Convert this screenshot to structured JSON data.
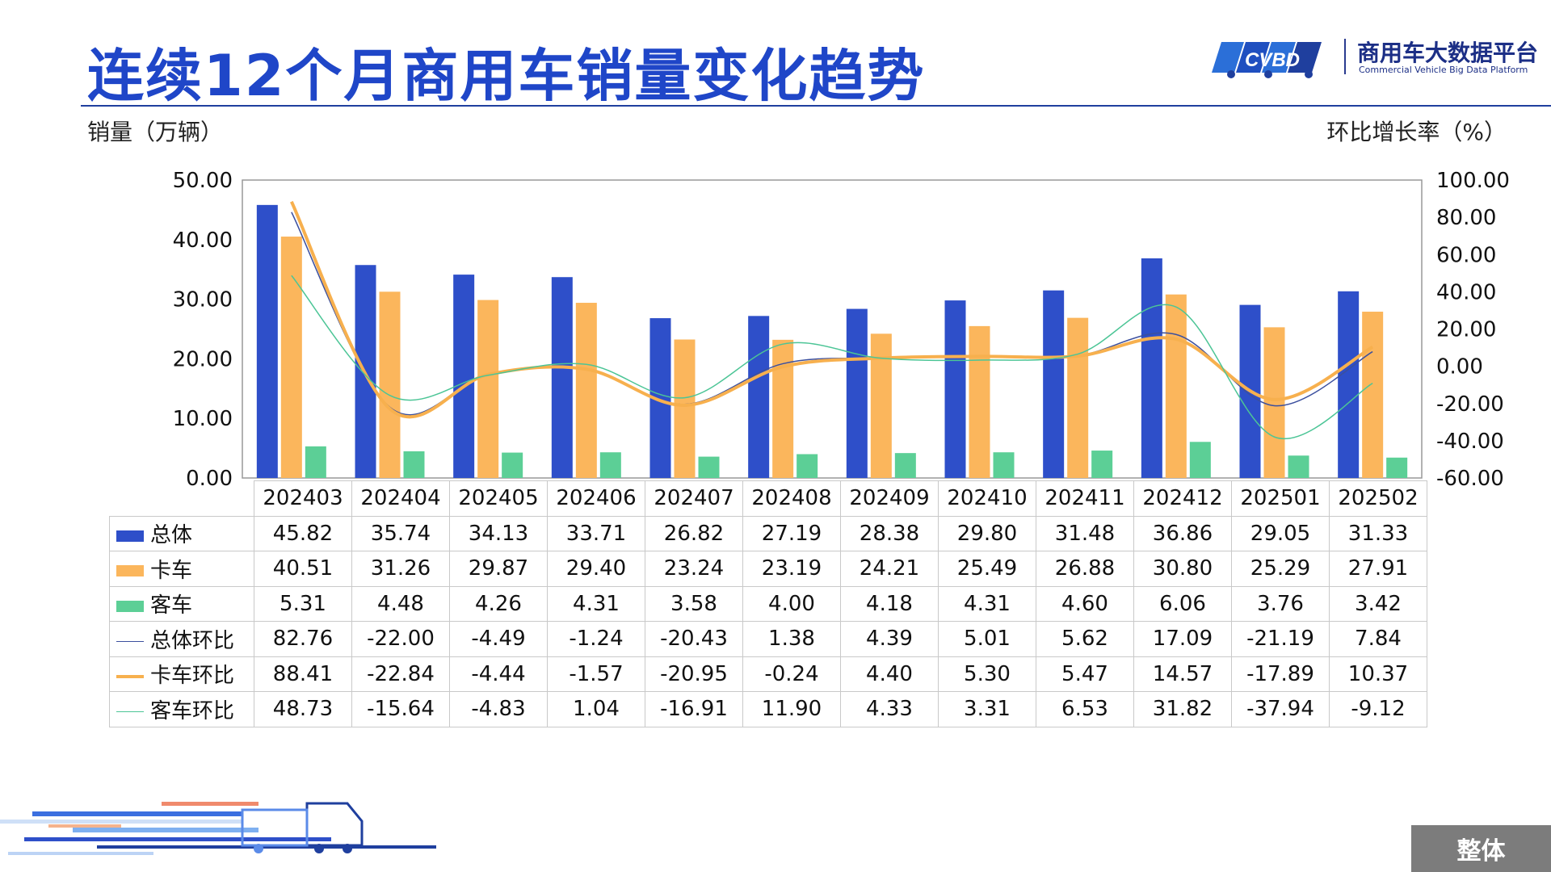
{
  "header": {
    "title": "连续12个月商用车销量变化趋势",
    "logo_text": "商用车大数据平台",
    "logo_sub": "Commercial Vehicle Big Data Platform",
    "logo_mark": "CVBD"
  },
  "axes": {
    "left_title": "销量（万辆）",
    "right_title": "环比增长率（%）"
  },
  "footer": {
    "button_label": "整体"
  },
  "chart_data": {
    "type": "bar",
    "categories": [
      "202403",
      "202404",
      "202405",
      "202406",
      "202407",
      "202408",
      "202409",
      "202410",
      "202411",
      "202412",
      "202501",
      "202502"
    ],
    "y_left": {
      "ticks": [
        "0.00",
        "10.00",
        "20.00",
        "30.00",
        "40.00",
        "50.00"
      ],
      "ylim": [
        0,
        50
      ]
    },
    "y_right": {
      "ticks": [
        "-60.00",
        "-40.00",
        "-20.00",
        "0.00",
        "20.00",
        "40.00",
        "60.00",
        "80.00",
        "100.00"
      ],
      "ylim": [
        -60,
        100
      ]
    },
    "grid": false,
    "series": [
      {
        "name": "总体",
        "kind": "bar",
        "axis": "left",
        "color": "#2e4fc9",
        "values": [
          45.82,
          35.74,
          34.13,
          33.71,
          26.82,
          27.19,
          28.38,
          29.8,
          31.48,
          36.86,
          29.05,
          31.33
        ],
        "labels": [
          "45.82",
          "35.74",
          "34.13",
          "33.71",
          "26.82",
          "27.19",
          "28.38",
          "29.80",
          "31.48",
          "36.86",
          "29.05",
          "31.33"
        ]
      },
      {
        "name": "卡车",
        "kind": "bar",
        "axis": "left",
        "color": "#fbb65c",
        "values": [
          40.51,
          31.26,
          29.87,
          29.4,
          23.24,
          23.19,
          24.21,
          25.49,
          26.88,
          30.8,
          25.29,
          27.91
        ],
        "labels": [
          "40.51",
          "31.26",
          "29.87",
          "29.40",
          "23.24",
          "23.19",
          "24.21",
          "25.49",
          "26.88",
          "30.80",
          "25.29",
          "27.91"
        ]
      },
      {
        "name": "客车",
        "kind": "bar",
        "axis": "left",
        "color": "#5ccf96",
        "values": [
          5.31,
          4.48,
          4.26,
          4.31,
          3.58,
          4.0,
          4.18,
          4.31,
          4.6,
          6.06,
          3.76,
          3.42
        ],
        "labels": [
          "5.31",
          "4.48",
          "4.26",
          "4.31",
          "3.58",
          "4.00",
          "4.18",
          "4.31",
          "4.60",
          "6.06",
          "3.76",
          "3.42"
        ]
      },
      {
        "name": "总体环比",
        "kind": "line",
        "axis": "right",
        "color": "#3b4f9e",
        "values": [
          82.76,
          -22.0,
          -4.49,
          -1.24,
          -20.43,
          1.38,
          4.39,
          5.01,
          5.62,
          17.09,
          -21.19,
          7.84
        ],
        "labels": [
          "82.76",
          "-22.00",
          "-4.49",
          "-1.24",
          "-20.43",
          "1.38",
          "4.39",
          "5.01",
          "5.62",
          "17.09",
          "-21.19",
          "7.84"
        ]
      },
      {
        "name": "卡车环比",
        "kind": "line",
        "axis": "right",
        "color": "#f7b04e",
        "values": [
          88.41,
          -22.84,
          -4.44,
          -1.57,
          -20.95,
          -0.24,
          4.4,
          5.3,
          5.47,
          14.57,
          -17.89,
          10.37
        ],
        "labels": [
          "88.41",
          "-22.84",
          "-4.44",
          "-1.57",
          "-20.95",
          "-0.24",
          "4.40",
          "5.30",
          "5.47",
          "14.57",
          "-17.89",
          "10.37"
        ]
      },
      {
        "name": "客车环比",
        "kind": "line",
        "axis": "right",
        "color": "#4cc596",
        "values": [
          48.73,
          -15.64,
          -4.83,
          1.04,
          -16.91,
          11.9,
          4.33,
          3.31,
          6.53,
          31.82,
          -37.94,
          -9.12
        ],
        "labels": [
          "48.73",
          "-15.64",
          "-4.83",
          "1.04",
          "-16.91",
          "11.90",
          "4.33",
          "3.31",
          "6.53",
          "31.82",
          "-37.94",
          "-9.12"
        ]
      }
    ]
  }
}
